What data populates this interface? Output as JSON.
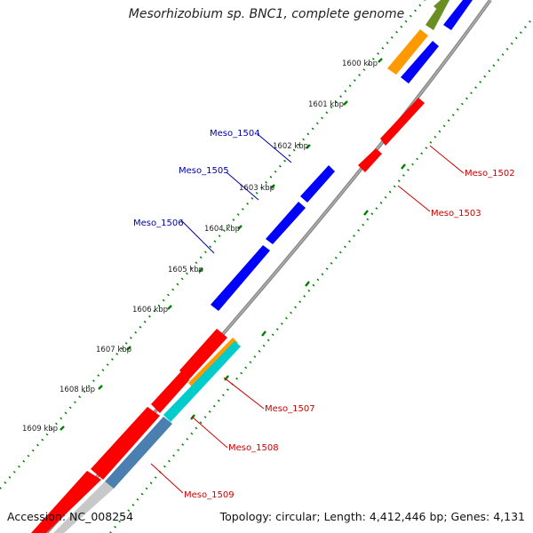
{
  "header": {
    "title": "Mesorhizobium sp. BNC1, complete genome"
  },
  "footer": {
    "accession": "Accession: NC_008254",
    "topology": "Topology: circular; Length: 4,412,446 bp; Genes: 4,131"
  },
  "colors": {
    "forward_gene": "#ff0000",
    "reverse_gene": "#0000ff",
    "label_forward": "#cc0000",
    "label_reverse": "#0000aa",
    "orange_feature": "#ff9900",
    "cyan_feature": "#00cccc",
    "steelblue_feature": "#4a7fb0",
    "grey_feature": "#c8c8c8",
    "olive_feature": "#6b8e23",
    "backbone": "#888888",
    "tick_dots": "#008000"
  },
  "tick_labels": [
    "1600 kbp",
    "1601 kbp",
    "1602 kbp",
    "1603 kbp",
    "1604 kbp",
    "1605 kbp",
    "1606 kbp",
    "1607 kbp",
    "1608 kbp",
    "1609 kbp"
  ],
  "gene_labels": [
    {
      "text": "Meso_1502",
      "strand": "forward"
    },
    {
      "text": "Meso_1503",
      "strand": "forward"
    },
    {
      "text": "Meso_1504",
      "strand": "reverse"
    },
    {
      "text": "Meso_1505",
      "strand": "reverse"
    },
    {
      "text": "Meso_1506",
      "strand": "reverse"
    },
    {
      "text": "Meso_1507",
      "strand": "forward"
    },
    {
      "text": "Meso_1508",
      "strand": "forward"
    },
    {
      "text": "Meso_1509",
      "strand": "forward"
    }
  ]
}
